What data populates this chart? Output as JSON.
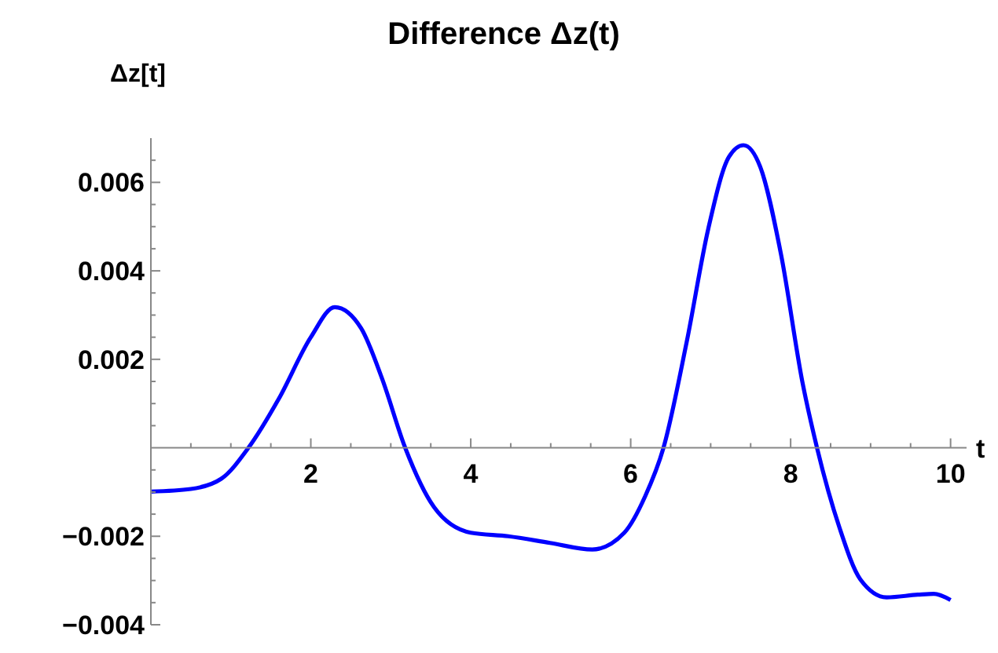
{
  "chart_data": {
    "type": "line",
    "title": "Difference Δz(t)",
    "xlabel": "t",
    "ylabel": "Δz[t]",
    "x": [
      0,
      0.5,
      0.88,
      1.22,
      1.6,
      2.0,
      2.3,
      2.63,
      2.89,
      3.18,
      3.54,
      4.0,
      4.47,
      4.99,
      5.52,
      5.92,
      6.18,
      6.41,
      6.7,
      6.97,
      7.23,
      7.41,
      7.62,
      7.88,
      8.15,
      8.33,
      8.61,
      8.87,
      9.2,
      9.59,
      9.79,
      10.0
    ],
    "series": [
      {
        "color": "#0000ff",
        "values": [
          -0.00099,
          -0.00093,
          -0.0007,
          0,
          0.00111,
          0.0025,
          0.00318,
          0.0027,
          0.00157,
          0,
          -0.00134,
          -0.00192,
          -0.002,
          -0.00215,
          -0.0023,
          -0.00192,
          -0.0011,
          0,
          0.00239,
          0.00495,
          0.00658,
          0.00684,
          0.00635,
          0.00437,
          0.00146,
          0,
          -0.0018,
          -0.00297,
          -0.00338,
          -0.00332,
          -0.0033,
          -0.00344
        ]
      }
    ],
    "xlim": [
      0,
      10.2
    ],
    "ylim": [
      -0.004,
      0.007
    ],
    "xticks": [
      {
        "value": 0.5,
        "label": null
      },
      {
        "value": 1,
        "label": null
      },
      {
        "value": 1.5,
        "label": null
      },
      2,
      {
        "value": 2.5,
        "label": null
      },
      {
        "value": 3,
        "label": null
      },
      {
        "value": 3.5,
        "label": null
      },
      4,
      {
        "value": 4.5,
        "label": null
      },
      {
        "value": 5,
        "label": null
      },
      {
        "value": 5.5,
        "label": null
      },
      6,
      {
        "value": 6.5,
        "label": null
      },
      {
        "value": 7,
        "label": null
      },
      {
        "value": 7.5,
        "label": null
      },
      8,
      {
        "value": 8.5,
        "label": null
      },
      {
        "value": 9,
        "label": null
      },
      {
        "value": 9.5,
        "label": null
      },
      10
    ],
    "yticks": [
      {
        "value": -0.004,
        "label": "−0.004"
      },
      {
        "value": -0.0035,
        "label": null
      },
      {
        "value": -0.003,
        "label": null
      },
      {
        "value": -0.0025,
        "label": null
      },
      {
        "value": -0.002,
        "label": "−0.002"
      },
      {
        "value": -0.0015,
        "label": null
      },
      {
        "value": -0.001,
        "label": null
      },
      {
        "value": -0.0005,
        "label": null
      },
      {
        "value": 0.0005,
        "label": null
      },
      {
        "value": 0.001,
        "label": null
      },
      {
        "value": 0.0015,
        "label": null
      },
      0.002,
      {
        "value": 0.0025,
        "label": null
      },
      {
        "value": 0.003,
        "label": null
      },
      {
        "value": 0.0035,
        "label": null
      },
      0.004,
      {
        "value": 0.0045,
        "label": null
      },
      {
        "value": 0.005,
        "label": null
      },
      {
        "value": 0.0055,
        "label": null
      },
      0.006,
      {
        "value": 0.0065,
        "label": null
      }
    ]
  }
}
